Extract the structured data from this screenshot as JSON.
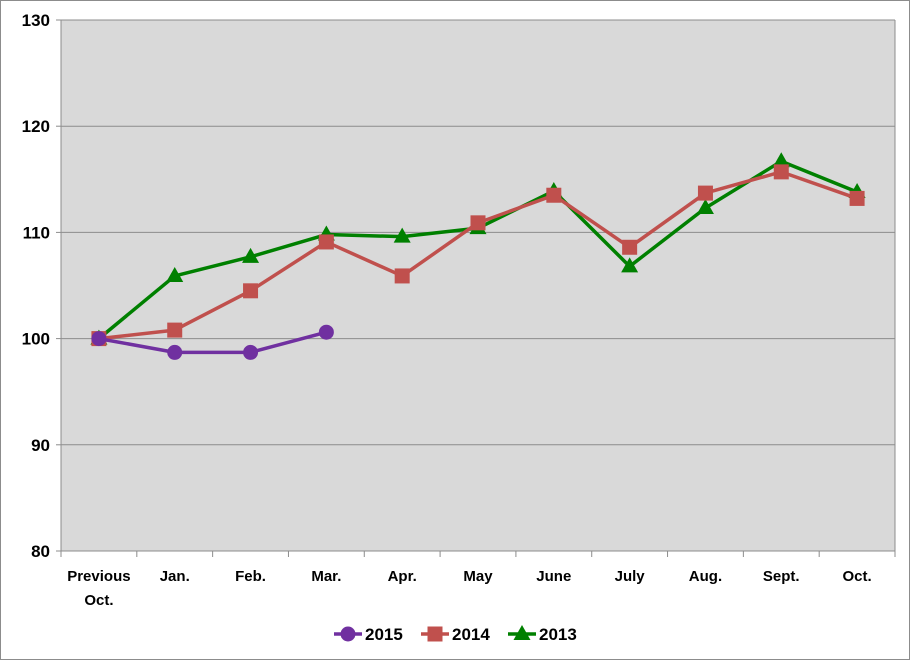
{
  "chart_data": {
    "type": "line",
    "title": "",
    "xlabel": "",
    "ylabel": "",
    "categories": [
      [
        "Previous",
        "Oct."
      ],
      [
        "Jan."
      ],
      [
        "Feb."
      ],
      [
        "Mar."
      ],
      [
        "Apr."
      ],
      [
        "May"
      ],
      [
        "June"
      ],
      [
        "July"
      ],
      [
        "Aug."
      ],
      [
        "Sept."
      ],
      [
        "Oct."
      ]
    ],
    "ylim": [
      80,
      130
    ],
    "yticks": [
      80,
      90,
      100,
      110,
      120,
      130
    ],
    "grid": true,
    "legend_position": "bottom",
    "plot_background": "#d9d9d9",
    "series": [
      {
        "name": "2015",
        "color": "#7030a0",
        "marker": "circle",
        "values": [
          100,
          98.7,
          98.7,
          100.6,
          null,
          null,
          null,
          null,
          null,
          null,
          null
        ]
      },
      {
        "name": "2014",
        "color": "#c0504d",
        "marker": "square",
        "values": [
          100,
          100.8,
          104.5,
          109.1,
          105.9,
          110.9,
          113.5,
          108.6,
          113.7,
          115.7,
          113.2
        ]
      },
      {
        "name": "2013",
        "color": "#008000",
        "marker": "triangle",
        "values": [
          100,
          105.9,
          107.7,
          109.8,
          109.6,
          110.4,
          113.9,
          106.8,
          112.3,
          116.7,
          113.8
        ]
      }
    ]
  }
}
